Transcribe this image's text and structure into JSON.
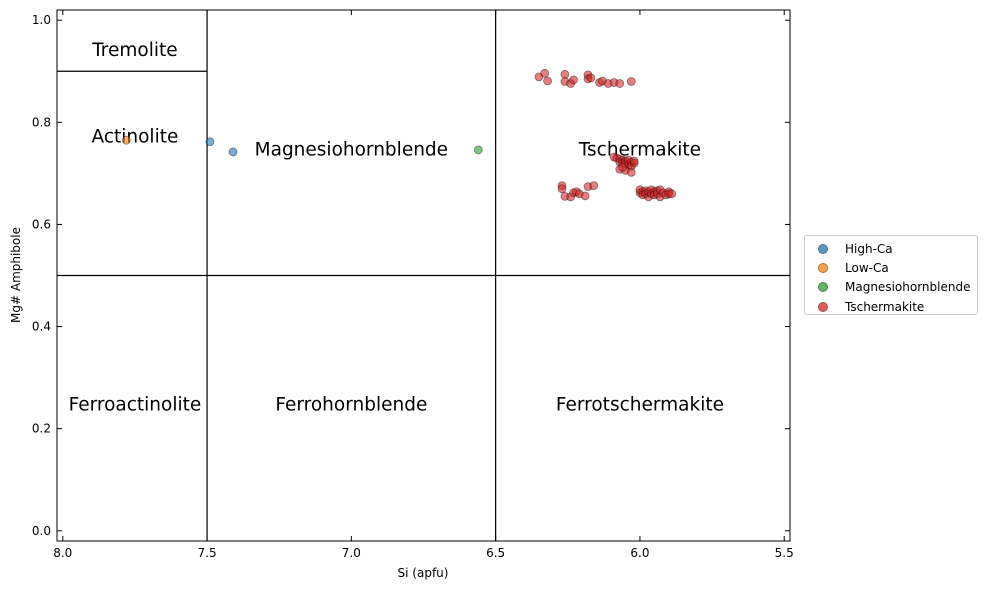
{
  "chart_data": {
    "type": "scatter",
    "title": "",
    "xlabel": "Si (apfu)",
    "ylabel": "Mg# Amphibole",
    "xlim": [
      8.02,
      5.48
    ],
    "ylim": [
      -0.02,
      1.02
    ],
    "x_axis_reversed": true,
    "x_ticks": [
      8.0,
      7.5,
      7.0,
      6.5,
      6.0,
      5.5
    ],
    "x_tick_labels": [
      "8.0",
      "7.5",
      "7.0",
      "6.5",
      "6.0",
      "5.5"
    ],
    "y_ticks": [
      0.0,
      0.2,
      0.4,
      0.6,
      0.8,
      1.0
    ],
    "y_tick_labels": [
      "0.0",
      "0.2",
      "0.4",
      "0.6",
      "0.8",
      "1.0"
    ],
    "grid": false,
    "legend_position": "right",
    "boundary_lines": {
      "vertical_si": [
        7.5,
        6.5
      ],
      "horizontal_mg": [
        0.5
      ],
      "tremolite_actinolite_split": {
        "mg": 0.9,
        "si_from": 8.02,
        "si_to": 7.5
      }
    },
    "field_labels": [
      {
        "text": "Tremolite",
        "si": 7.75,
        "mg": 0.94
      },
      {
        "text": "Actinolite",
        "si": 7.75,
        "mg": 0.77
      },
      {
        "text": "Magnesiohornblende",
        "si": 7.0,
        "mg": 0.745
      },
      {
        "text": "Tschermakite",
        "si": 6.0,
        "mg": 0.745
      },
      {
        "text": "Ferroactinolite",
        "si": 7.75,
        "mg": 0.245
      },
      {
        "text": "Ferrohornblende",
        "si": 7.0,
        "mg": 0.245
      },
      {
        "text": "Ferrotschermakite",
        "si": 6.0,
        "mg": 0.245
      }
    ],
    "series": [
      {
        "name": "High-Ca",
        "color": "#1f77b4",
        "points": [
          [
            7.49,
            0.762
          ],
          [
            7.41,
            0.742
          ]
        ]
      },
      {
        "name": "Low-Ca",
        "color": "#ff7f0e",
        "points": [
          [
            7.78,
            0.765
          ]
        ]
      },
      {
        "name": "Magnesiohornblende",
        "color": "#2ca02c",
        "points": [
          [
            6.56,
            0.746
          ]
        ]
      },
      {
        "name": "Tschermakite",
        "color": "#d62728",
        "points": [
          [
            6.35,
            0.889
          ],
          [
            6.33,
            0.896
          ],
          [
            6.32,
            0.881
          ],
          [
            6.26,
            0.894
          ],
          [
            6.26,
            0.88
          ],
          [
            6.24,
            0.876
          ],
          [
            6.23,
            0.883
          ],
          [
            6.18,
            0.893
          ],
          [
            6.18,
            0.885
          ],
          [
            6.17,
            0.887
          ],
          [
            6.14,
            0.878
          ],
          [
            6.13,
            0.881
          ],
          [
            6.11,
            0.876
          ],
          [
            6.09,
            0.878
          ],
          [
            6.07,
            0.876
          ],
          [
            6.03,
            0.88
          ],
          [
            6.27,
            0.676
          ],
          [
            6.27,
            0.67
          ],
          [
            6.26,
            0.655
          ],
          [
            6.24,
            0.654
          ],
          [
            6.23,
            0.662
          ],
          [
            6.22,
            0.664
          ],
          [
            6.21,
            0.66
          ],
          [
            6.19,
            0.656
          ],
          [
            6.18,
            0.674
          ],
          [
            6.16,
            0.676
          ],
          [
            6.09,
            0.732
          ],
          [
            6.08,
            0.73
          ],
          [
            6.07,
            0.728
          ],
          [
            6.07,
            0.722
          ],
          [
            6.06,
            0.726
          ],
          [
            6.06,
            0.72
          ],
          [
            6.05,
            0.724
          ],
          [
            6.05,
            0.718
          ],
          [
            6.04,
            0.726
          ],
          [
            6.04,
            0.716
          ],
          [
            6.03,
            0.722
          ],
          [
            6.03,
            0.714
          ],
          [
            6.02,
            0.72
          ],
          [
            6.02,
            0.724
          ],
          [
            6.07,
            0.708
          ],
          [
            6.05,
            0.706
          ],
          [
            6.03,
            0.702
          ],
          [
            6.06,
            0.712
          ],
          [
            6.0,
            0.662
          ],
          [
            6.0,
            0.668
          ],
          [
            5.99,
            0.664
          ],
          [
            5.99,
            0.658
          ],
          [
            5.98,
            0.666
          ],
          [
            5.98,
            0.66
          ],
          [
            5.97,
            0.654
          ],
          [
            5.97,
            0.664
          ],
          [
            5.96,
            0.668
          ],
          [
            5.96,
            0.66
          ],
          [
            5.95,
            0.664
          ],
          [
            5.95,
            0.658
          ],
          [
            5.94,
            0.666
          ],
          [
            5.94,
            0.66
          ],
          [
            5.93,
            0.668
          ],
          [
            5.93,
            0.654
          ],
          [
            5.92,
            0.662
          ],
          [
            5.91,
            0.658
          ],
          [
            5.9,
            0.664
          ],
          [
            5.9,
            0.66
          ],
          [
            5.89,
            0.66
          ]
        ]
      }
    ]
  }
}
